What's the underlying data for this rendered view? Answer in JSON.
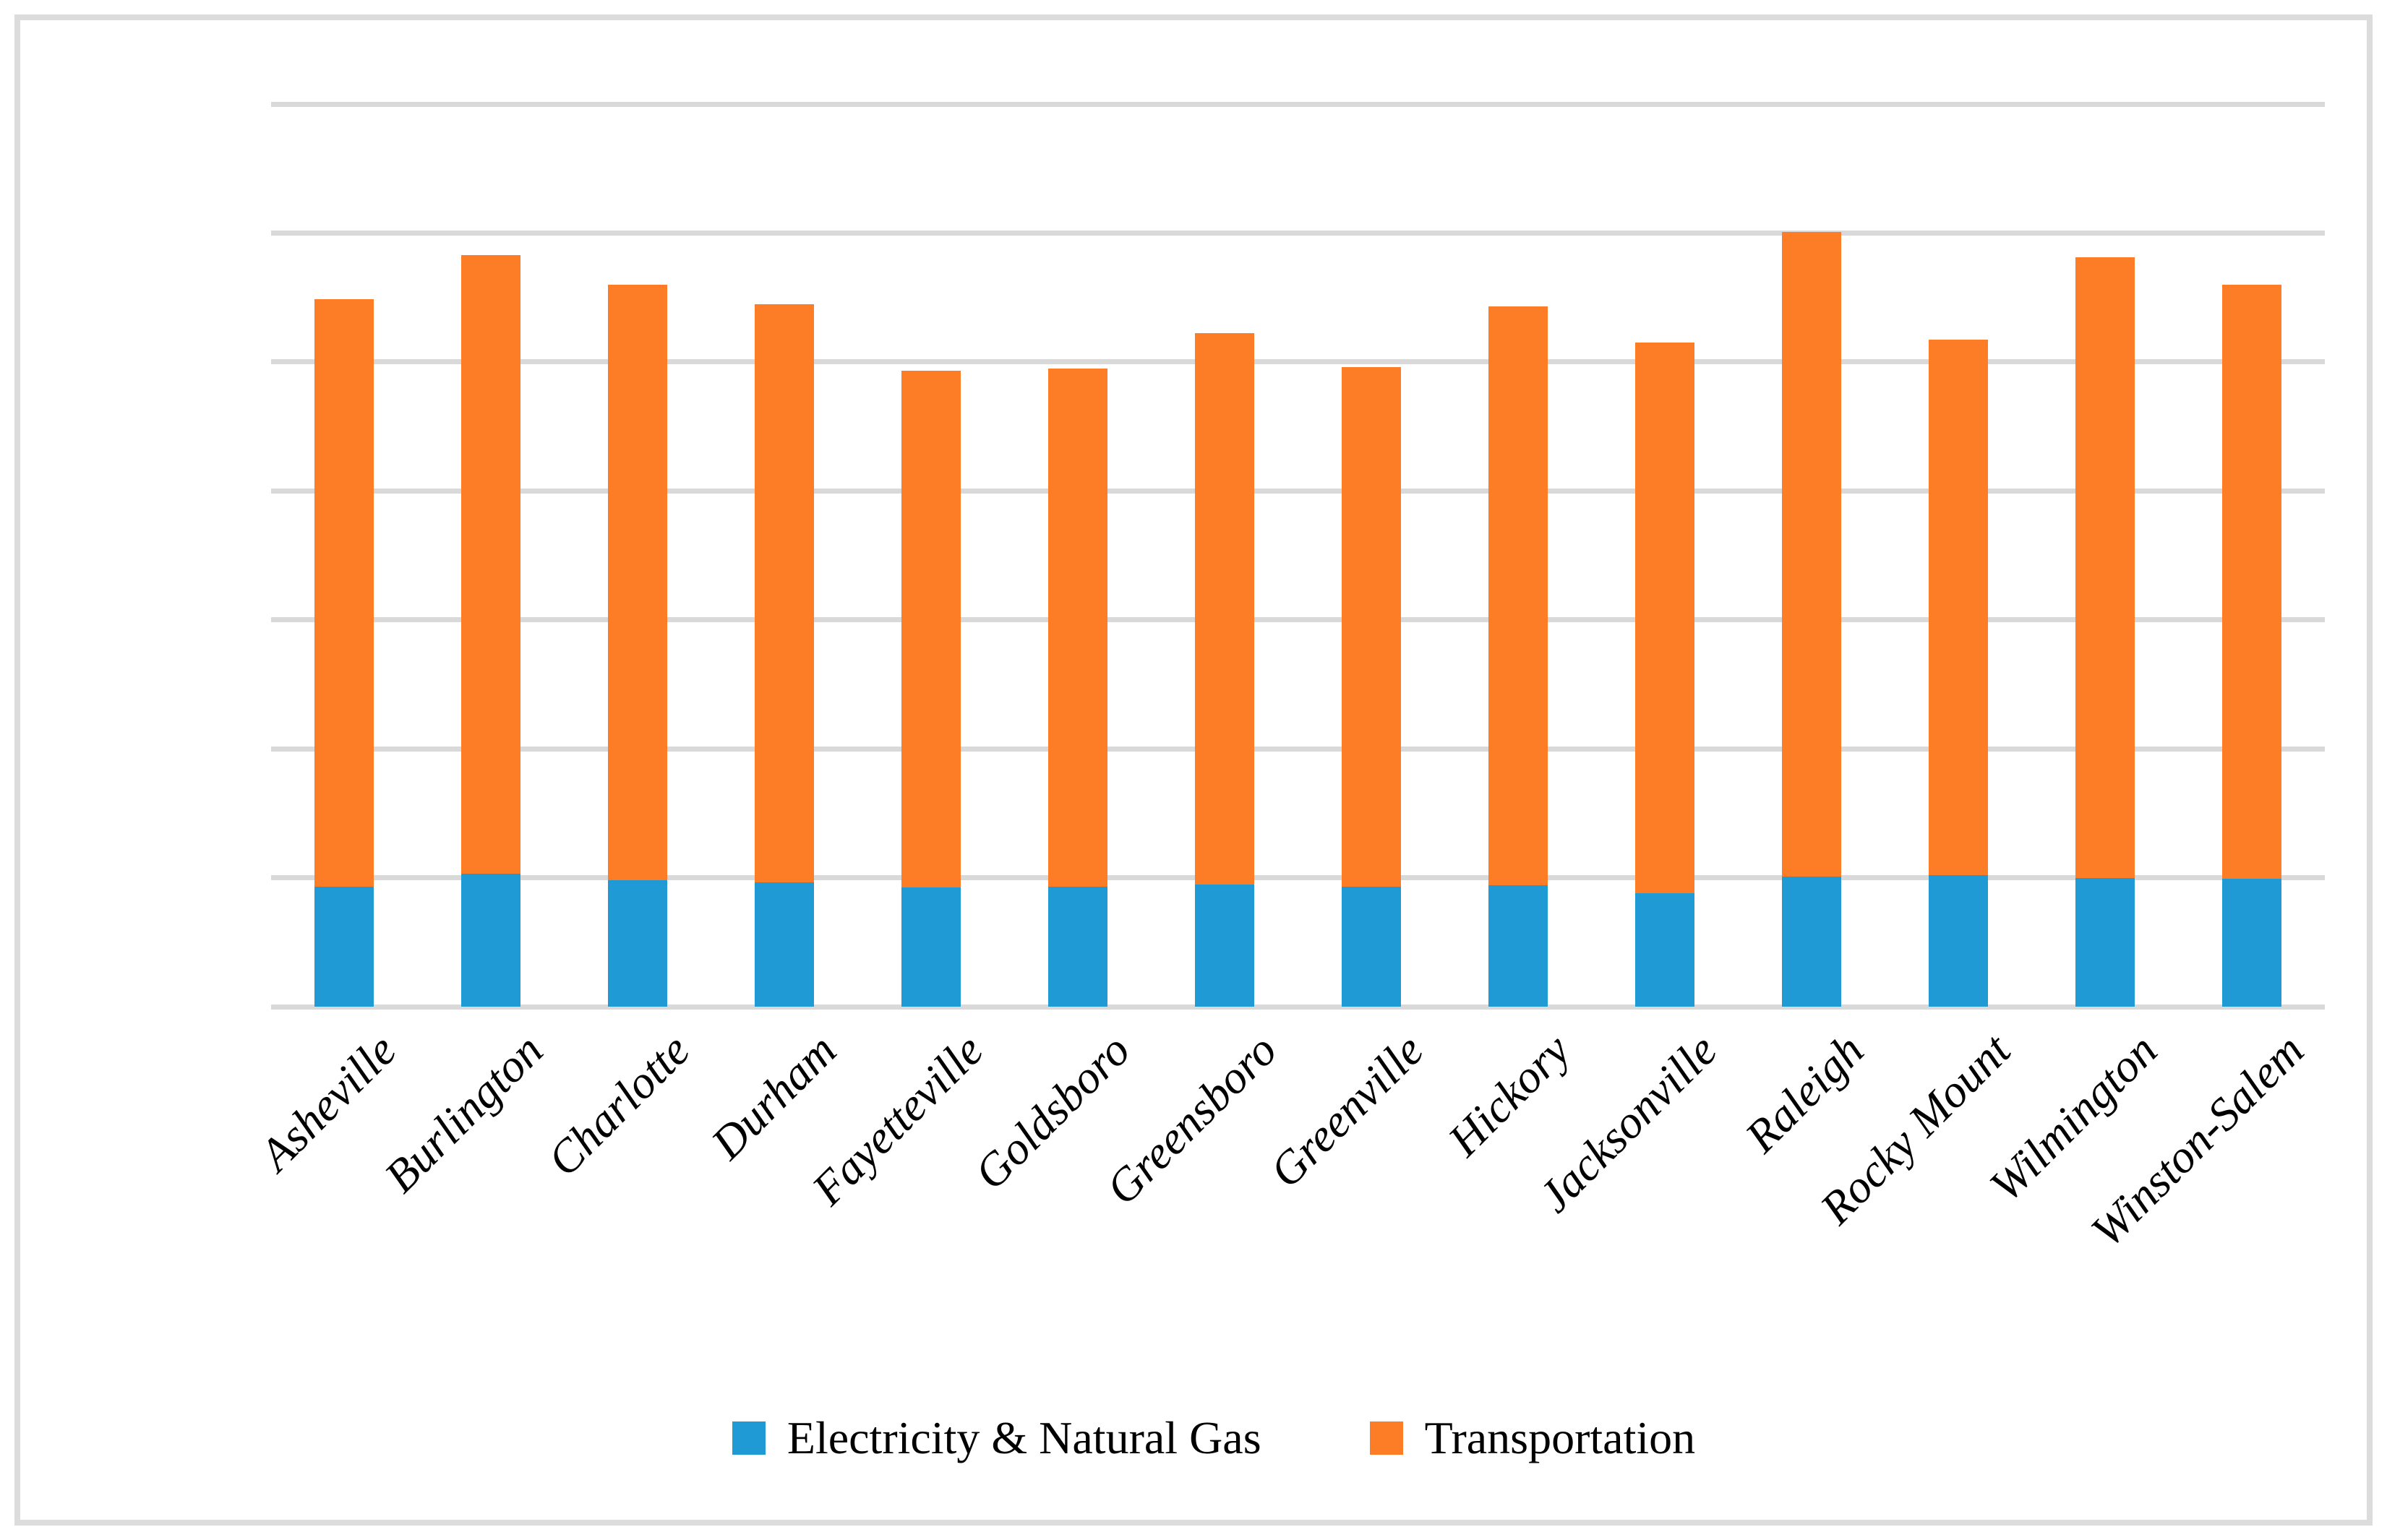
{
  "chart_data": {
    "type": "bar",
    "stacked": true,
    "title": "",
    "xlabel": "",
    "ylabel": "",
    "ylim": [
      0,
      14000
    ],
    "yticks": [
      0,
      2000,
      4000,
      6000,
      8000,
      10000,
      12000,
      14000
    ],
    "grid": true,
    "legend_position": "bottom",
    "categories": [
      "Asheville",
      "Burlington",
      "Charlotte",
      "Durham",
      "Fayetteville",
      "Goldsboro",
      "Greensboro",
      "Greenville",
      "Hickory",
      "Jacksonville",
      "Raleigh",
      "Rocky Mount",
      "Wilmington",
      "Winston-Salem"
    ],
    "series": [
      {
        "name": "Electricity & Natural Gas",
        "color": "#1f9ad5",
        "values": [
          1860,
          2060,
          1960,
          1930,
          1850,
          1860,
          1890,
          1860,
          1880,
          1765,
          2015,
          2035,
          1995,
          1980
        ]
      },
      {
        "name": "Transportation",
        "color": "#fc7d26",
        "values": [
          9110,
          9595,
          9240,
          8960,
          8010,
          8040,
          8555,
          8060,
          8980,
          8535,
          10000,
          8310,
          9630,
          9220
        ]
      }
    ],
    "totals": [
      10970,
      11655,
      11200,
      10890,
      9860,
      9900,
      10445,
      9920,
      10860,
      10300,
      12015,
      10345,
      11625,
      11200
    ]
  },
  "colors": {
    "gridline": "#d9d9d9",
    "frame_border": "#dcdcdc",
    "text": "#000000",
    "background": "#ffffff"
  },
  "legend": {
    "items": [
      {
        "label": "Electricity & Natural Gas",
        "color": "#1f9ad5"
      },
      {
        "label": "Transportation",
        "color": "#fc7d26"
      }
    ]
  }
}
